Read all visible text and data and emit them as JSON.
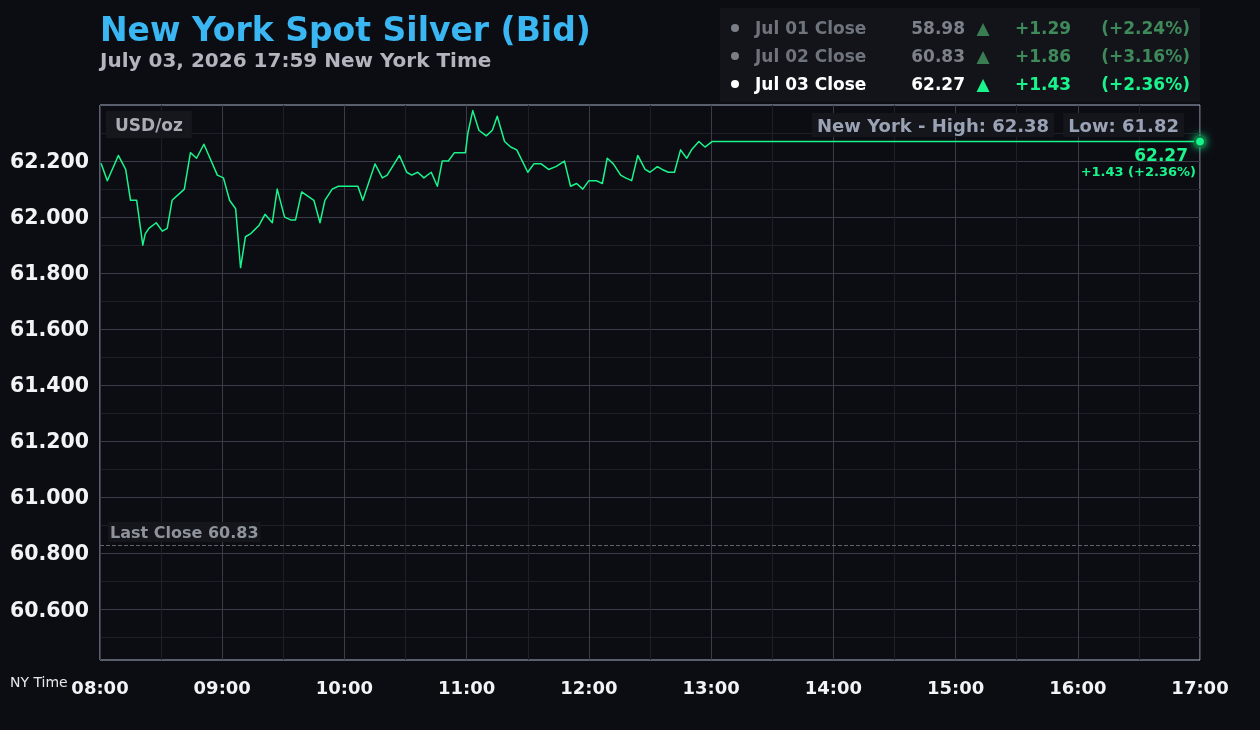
{
  "chart_data": {
    "type": "line",
    "title": "New York Spot Silver (Bid)",
    "subtitle": "July 03, 2026 17:59 New York Time",
    "xlabel": "NY Time",
    "ylabel": "USD/oz",
    "x": [
      8.01,
      8.06,
      8.15,
      8.21,
      8.25,
      8.3,
      8.35,
      8.37,
      8.4,
      8.46,
      8.51,
      8.55,
      8.59,
      8.69,
      8.74,
      8.79,
      8.85,
      8.91,
      8.96,
      9.01,
      9.06,
      9.11,
      9.15,
      9.19,
      9.23,
      9.3,
      9.35,
      9.41,
      9.45,
      9.51,
      9.56,
      9.6,
      9.65,
      9.75,
      9.8,
      9.84,
      9.9,
      9.95,
      10.11,
      10.15,
      10.25,
      10.31,
      10.35,
      10.45,
      10.51,
      10.55,
      10.6,
      10.65,
      10.71,
      10.76,
      10.8,
      10.85,
      10.9,
      10.99,
      11.01,
      11.05,
      11.1,
      11.16,
      11.21,
      11.25,
      11.31,
      11.36,
      11.41,
      11.5,
      11.55,
      11.61,
      11.67,
      11.73,
      11.8,
      11.85,
      11.9,
      11.95,
      12.0,
      12.06,
      12.11,
      12.15,
      12.2,
      12.26,
      12.3,
      12.35,
      12.4,
      12.46,
      12.5,
      12.56,
      12.6,
      12.65,
      12.7,
      12.75,
      12.8,
      12.84,
      12.9,
      12.95,
      13.01,
      17
    ],
    "values": [
      62.19,
      62.13,
      62.22,
      62.17,
      62.06,
      62.06,
      61.9,
      61.94,
      61.96,
      61.98,
      61.95,
      61.96,
      62.06,
      62.1,
      62.23,
      62.21,
      62.26,
      62.2,
      62.15,
      62.14,
      62.06,
      62.03,
      61.82,
      61.93,
      61.94,
      61.97,
      62.01,
      61.98,
      62.1,
      62.0,
      61.99,
      61.99,
      62.09,
      62.06,
      61.98,
      62.06,
      62.1,
      62.11,
      62.11,
      62.06,
      62.19,
      62.14,
      62.15,
      62.22,
      62.16,
      62.15,
      62.16,
      62.14,
      62.16,
      62.11,
      62.2,
      62.2,
      62.23,
      62.23,
      62.3,
      62.38,
      62.31,
      62.29,
      62.31,
      62.36,
      62.27,
      62.25,
      62.24,
      62.16,
      62.19,
      62.19,
      62.17,
      62.18,
      62.2,
      62.11,
      62.12,
      62.1,
      62.13,
      62.13,
      62.12,
      62.21,
      62.19,
      62.15,
      62.14,
      62.13,
      62.22,
      62.17,
      62.16,
      62.18,
      62.17,
      62.16,
      62.16,
      62.24,
      62.21,
      62.24,
      62.27,
      62.25,
      62.27,
      62.27
    ],
    "color": "#19f58c",
    "xlim": [
      8,
      17
    ],
    "xticks": [
      {
        "value": 8,
        "label": "08:00"
      },
      {
        "value": 8.5,
        "label": null
      },
      {
        "value": 9,
        "label": "09:00"
      },
      {
        "value": 9.5,
        "label": null
      },
      {
        "value": 10,
        "label": "10:00"
      },
      {
        "value": 10.5,
        "label": null
      },
      {
        "value": 11,
        "label": "11:00"
      },
      {
        "value": 11.5,
        "label": null
      },
      {
        "value": 12,
        "label": "12:00"
      },
      {
        "value": 12.5,
        "label": null
      },
      {
        "value": 13,
        "label": "13:00"
      },
      {
        "value": 13.5,
        "label": null
      },
      {
        "value": 14,
        "label": "14:00"
      },
      {
        "value": 14.5,
        "label": null
      },
      {
        "value": 15,
        "label": "15:00"
      },
      {
        "value": 15.5,
        "label": null
      },
      {
        "value": 16,
        "label": "16:00"
      },
      {
        "value": 16.5,
        "label": null
      },
      {
        "value": 17,
        "label": "17:00"
      }
    ],
    "ylim": [
      60.42,
      62.4
    ],
    "yticks": [
      {
        "value": 60.5,
        "label": null
      },
      {
        "value": 60.6,
        "label": "60.600"
      },
      {
        "value": 60.7,
        "label": null
      },
      {
        "value": 60.8,
        "label": "60.800"
      },
      {
        "value": 60.9,
        "label": null
      },
      {
        "value": 61,
        "label": "61.000"
      },
      {
        "value": 61.1,
        "label": null
      },
      {
        "value": 61.2,
        "label": "61.200"
      },
      {
        "value": 61.3,
        "label": null
      },
      {
        "value": 61.4,
        "label": "61.400"
      },
      {
        "value": 61.5,
        "label": null
      },
      {
        "value": 61.6,
        "label": "61.600"
      },
      {
        "value": 61.7,
        "label": null
      },
      {
        "value": 61.8,
        "label": "61.800"
      },
      {
        "value": 61.9,
        "label": null
      },
      {
        "value": 62,
        "label": "62.000"
      },
      {
        "value": 62.1,
        "label": null
      },
      {
        "value": 62.2,
        "label": "62.200"
      },
      {
        "value": 62.3,
        "label": null
      }
    ],
    "grid": true,
    "ref_lines": [
      {
        "axis": "y",
        "value": 60.83,
        "label": "Last Close 60.83",
        "color": "#5f636c",
        "line_style": "dashed"
      }
    ],
    "annotations": [
      "Jul 01 Close",
      "58.98",
      "▲",
      "+1.29",
      "(+2.24%)",
      "Jul 02 Close",
      "60.83",
      "▲",
      "+1.86",
      "(+3.16%)",
      "Jul 03 Close",
      "62.27",
      "▲",
      "+1.43",
      "(+2.36%)",
      "New York - High: 62.38",
      "Low: 61.82",
      {
        "text": "62.27",
        "x": 17,
        "y": 62.27
      },
      {
        "text": "+1.43 (+2.36%)",
        "x": 17,
        "y": 62.27
      }
    ]
  }
}
